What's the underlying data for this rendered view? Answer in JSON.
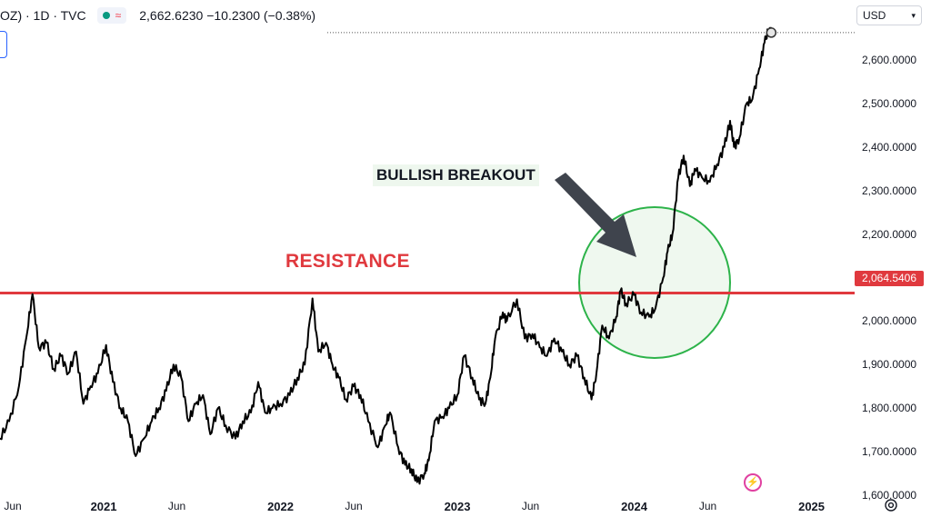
{
  "header": {
    "symbol": "OZ) · 1D · TVC",
    "price_info": "2,662.6230  −10.2300 (−0.38%)"
  },
  "currency": {
    "value": "USD"
  },
  "annotations": {
    "resistance": "RESISTANCE",
    "breakout": "BULLISH BREAKOUT"
  },
  "price_tag": "2,064.5406",
  "colors": {
    "line": "#000000",
    "resistance": "#e0393e",
    "circle_stroke": "#2db34a",
    "circle_fill": "#eaf6ea",
    "arrow": "#3f444d"
  },
  "chart_data": {
    "type": "line",
    "ylim": [
      1600,
      2700
    ],
    "xlim": [
      "2020-06-01",
      "2025-03-31"
    ],
    "y_ticks": [
      {
        "value": 1600,
        "label": "1,600.0000"
      },
      {
        "value": 1700,
        "label": "1,700.0000"
      },
      {
        "value": 1800,
        "label": "1,800.0000"
      },
      {
        "value": 1900,
        "label": "1,900.0000"
      },
      {
        "value": 2000,
        "label": "2,000.0000"
      },
      {
        "value": 2100,
        "label": "2,100.0000"
      },
      {
        "value": 2200,
        "label": "2,200.0000"
      },
      {
        "value": 2300,
        "label": "2,300.0000"
      },
      {
        "value": 2400,
        "label": "2,400.0000"
      },
      {
        "value": 2500,
        "label": "2,500.0000"
      },
      {
        "value": 2600,
        "label": "2,600.0000"
      }
    ],
    "x_ticks": [
      {
        "date": "2020-06-01",
        "label": "Jun",
        "bold": false
      },
      {
        "date": "2021-01-01",
        "label": "2021",
        "bold": true
      },
      {
        "date": "2021-06-01",
        "label": "Jun",
        "bold": false
      },
      {
        "date": "2022-01-01",
        "label": "2022",
        "bold": true
      },
      {
        "date": "2022-06-01",
        "label": "Jun",
        "bold": false
      },
      {
        "date": "2023-01-01",
        "label": "2023",
        "bold": true
      },
      {
        "date": "2023-06-01",
        "label": "Jun",
        "bold": false
      },
      {
        "date": "2024-01-01",
        "label": "2024",
        "bold": true
      },
      {
        "date": "2024-06-01",
        "label": "Jun",
        "bold": false
      },
      {
        "date": "2025-01-01",
        "label": "2025",
        "bold": true
      }
    ],
    "resistance_level": 2064.5406,
    "last_price": 2662.623,
    "series": [
      {
        "x": [
          "2020-06-01",
          "2020-06-20",
          "2020-07-10",
          "2020-07-25",
          "2020-08-07",
          "2020-08-20",
          "2020-09-05",
          "2020-09-20",
          "2020-10-05",
          "2020-10-20",
          "2020-11-05",
          "2020-11-20",
          "2020-12-05",
          "2020-12-20",
          "2021-01-06",
          "2021-01-20",
          "2021-02-05",
          "2021-02-20",
          "2021-03-08",
          "2021-03-25",
          "2021-04-10",
          "2021-04-25",
          "2021-05-10",
          "2021-05-25",
          "2021-06-10",
          "2021-06-25",
          "2021-07-10",
          "2021-07-25",
          "2021-08-09",
          "2021-08-25",
          "2021-09-10",
          "2021-09-30",
          "2021-10-15",
          "2021-11-01",
          "2021-11-16",
          "2021-11-30",
          "2021-12-15",
          "2022-01-01",
          "2022-01-20",
          "2022-02-05",
          "2022-02-20",
          "2022-03-08",
          "2022-03-20",
          "2022-04-05",
          "2022-04-18",
          "2022-05-01",
          "2022-05-16",
          "2022-06-01",
          "2022-06-15",
          "2022-07-01",
          "2022-07-21",
          "2022-08-05",
          "2022-08-15",
          "2022-09-01",
          "2022-09-15",
          "2022-09-28",
          "2022-10-10",
          "2022-10-25",
          "2022-11-03",
          "2022-11-15",
          "2022-12-01",
          "2022-12-15",
          "2023-01-01",
          "2023-01-15",
          "2023-02-01",
          "2023-02-15",
          "2023-02-28",
          "2023-03-10",
          "2023-03-20",
          "2023-04-05",
          "2023-04-13",
          "2023-05-04",
          "2023-05-20",
          "2023-06-05",
          "2023-06-20",
          "2023-07-05",
          "2023-07-20",
          "2023-08-05",
          "2023-08-20",
          "2023-09-05",
          "2023-09-20",
          "2023-10-05",
          "2023-10-15",
          "2023-10-27",
          "2023-11-10",
          "2023-11-25",
          "2023-12-04",
          "2023-12-15",
          "2024-01-01",
          "2024-01-15",
          "2024-02-01",
          "2024-02-14",
          "2024-03-01",
          "2024-03-10",
          "2024-03-20",
          "2024-04-01",
          "2024-04-12",
          "2024-04-25",
          "2024-05-05",
          "2024-05-20",
          "2024-06-05",
          "2024-06-20",
          "2024-07-05",
          "2024-07-17",
          "2024-07-25",
          "2024-08-05",
          "2024-08-20",
          "2024-09-01",
          "2024-09-15",
          "2024-09-26",
          "2024-10-05",
          "2024-10-10"
        ],
        "values": [
          1730,
          1770,
          1850,
          1960,
          2062,
          1940,
          1950,
          1890,
          1920,
          1880,
          1930,
          1810,
          1850,
          1880,
          1945,
          1860,
          1800,
          1770,
          1690,
          1730,
          1770,
          1800,
          1840,
          1900,
          1870,
          1770,
          1810,
          1830,
          1740,
          1800,
          1760,
          1730,
          1770,
          1790,
          1860,
          1790,
          1800,
          1810,
          1830,
          1870,
          1900,
          2052,
          1930,
          1950,
          1900,
          1870,
          1820,
          1850,
          1830,
          1770,
          1710,
          1760,
          1790,
          1710,
          1670,
          1660,
          1630,
          1650,
          1680,
          1770,
          1780,
          1800,
          1830,
          1920,
          1870,
          1820,
          1810,
          1870,
          1960,
          2020,
          2000,
          2050,
          1960,
          1970,
          1940,
          1920,
          1960,
          1930,
          1900,
          1920,
          1870,
          1820,
          1880,
          1990,
          1960,
          2010,
          2070,
          2040,
          2060,
          2020,
          2010,
          2030,
          2100,
          2160,
          2200,
          2330,
          2380,
          2310,
          2350,
          2330,
          2320,
          2360,
          2400,
          2460,
          2400,
          2420,
          2500,
          2510,
          2580,
          2640,
          2670,
          2662.6
        ]
      }
    ]
  }
}
